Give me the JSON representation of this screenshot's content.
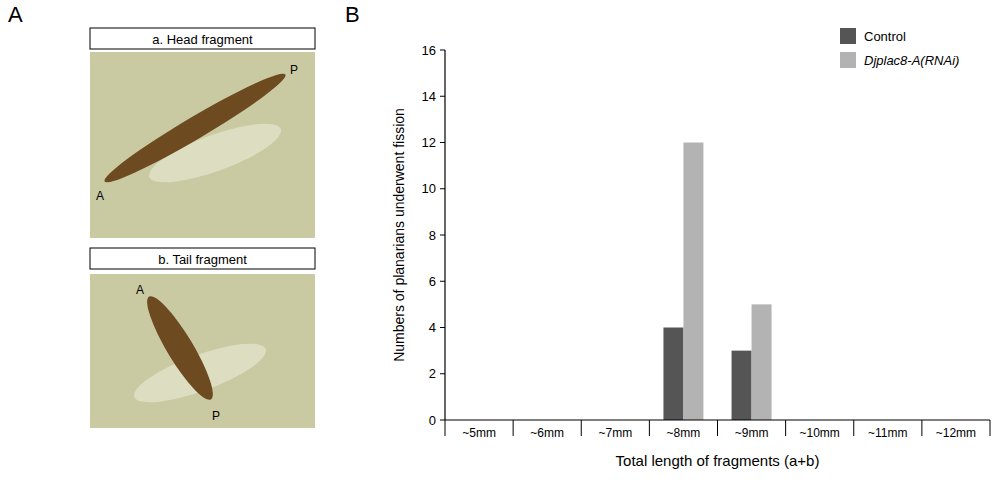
{
  "panel_labels": [
    "A",
    "B"
  ],
  "photos": [
    {
      "title": "a. Head fragment",
      "anterior": "A",
      "posterior": "P"
    },
    {
      "title": "b. Tail fragment",
      "anterior": "A",
      "posterior": "P"
    }
  ],
  "chart_data": {
    "type": "bar",
    "categories": [
      "~5mm",
      "~6mm",
      "~7mm",
      "~8mm",
      "~9mm",
      "~10mm",
      "~11mm",
      "~12mm"
    ],
    "series": [
      {
        "name": "Control",
        "color": "#555555",
        "values": [
          0,
          0,
          0,
          4,
          3,
          0,
          0,
          0
        ]
      },
      {
        "name": "Djplac8-A(RNAi)",
        "color": "#b3b3b3",
        "values": [
          0,
          0,
          0,
          12,
          5,
          0,
          0,
          0
        ]
      }
    ],
    "x_label": "Total length of fragments (a+b)",
    "y_label": "Numbers of planarians underwent fission",
    "ylim": [
      0,
      16
    ],
    "yticks": [
      0,
      2,
      4,
      6,
      8,
      10,
      12,
      14,
      16
    ],
    "grid": false,
    "legend": "top-right"
  }
}
